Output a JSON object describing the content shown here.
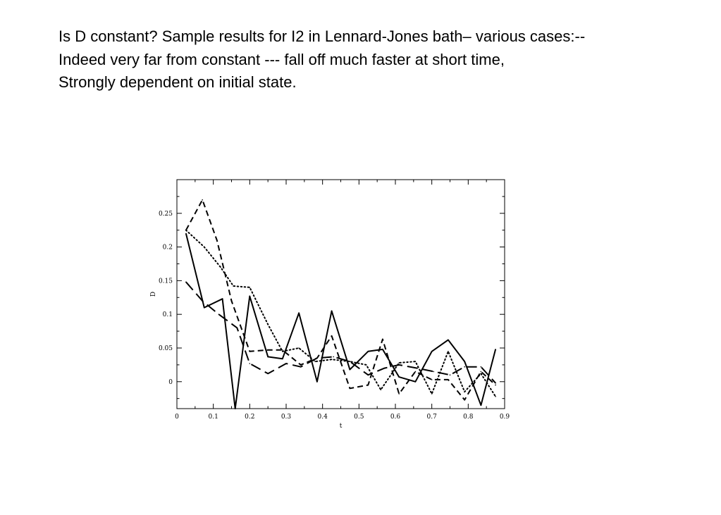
{
  "slide": {
    "lines": [
      "Is D constant? Sample results for I2 in Lennard-Jones bath– various cases:--",
      "Indeed very far from constant --- fall off much faster at short time,",
      "Strongly dependent on initial state."
    ]
  },
  "chart_data": {
    "type": "line",
    "xlabel": "t",
    "ylabel": "D",
    "xlim": [
      0,
      0.9
    ],
    "ylim": [
      -0.04,
      0.3
    ],
    "xticks": [
      "0",
      "0.1",
      "0.2",
      "0.3",
      "0.4",
      "0.5",
      "0.6",
      "0.7",
      "0.8",
      "0.9"
    ],
    "yticks": [
      "0",
      "0.05",
      "0.1",
      "0.15",
      "0.2",
      "0.25"
    ],
    "grid": false,
    "legend": "none",
    "series": [
      {
        "style": "solid",
        "x": [
          0.025,
          0.075,
          0.125,
          0.16,
          0.2,
          0.25,
          0.29,
          0.335,
          0.385,
          0.425,
          0.475,
          0.525,
          0.565,
          0.61,
          0.655,
          0.7,
          0.745,
          0.79,
          0.835,
          0.875
        ],
        "y": [
          0.22,
          0.11,
          0.123,
          -0.04,
          0.127,
          0.037,
          0.034,
          0.102,
          0.0,
          0.105,
          0.018,
          0.045,
          0.048,
          0.007,
          0.0,
          0.045,
          0.062,
          0.03,
          -0.035,
          0.048
        ]
      },
      {
        "style": "short-dash",
        "x": [
          0.025,
          0.07,
          0.11,
          0.15,
          0.2,
          0.25,
          0.29,
          0.34,
          0.385,
          0.425,
          0.475,
          0.525,
          0.565,
          0.61,
          0.655,
          0.7,
          0.745,
          0.79,
          0.835,
          0.875
        ],
        "y": [
          0.225,
          0.27,
          0.21,
          0.12,
          0.045,
          0.047,
          0.047,
          0.025,
          0.035,
          0.068,
          -0.01,
          -0.005,
          0.063,
          -0.018,
          0.015,
          0.003,
          0.003,
          -0.027,
          0.015,
          -0.005
        ]
      },
      {
        "style": "dotted",
        "x": [
          0.025,
          0.075,
          0.12,
          0.155,
          0.2,
          0.25,
          0.29,
          0.335,
          0.38,
          0.425,
          0.475,
          0.52,
          0.56,
          0.61,
          0.655,
          0.7,
          0.745,
          0.79,
          0.835,
          0.875
        ],
        "y": [
          0.225,
          0.2,
          0.17,
          0.142,
          0.14,
          0.085,
          0.045,
          0.05,
          0.03,
          0.033,
          0.03,
          0.025,
          -0.012,
          0.028,
          0.03,
          -0.018,
          0.045,
          -0.015,
          0.012,
          -0.022
        ]
      },
      {
        "style": "long-dash",
        "x": [
          0.025,
          0.07,
          0.115,
          0.165,
          0.2,
          0.25,
          0.3,
          0.34,
          0.385,
          0.43,
          0.475,
          0.525,
          0.57,
          0.61,
          0.66,
          0.705,
          0.75,
          0.79,
          0.835,
          0.875
        ],
        "y": [
          0.148,
          0.12,
          0.1,
          0.08,
          0.027,
          0.012,
          0.027,
          0.022,
          0.035,
          0.037,
          0.03,
          0.01,
          0.02,
          0.025,
          0.02,
          0.015,
          0.01,
          0.022,
          0.022,
          -0.002
        ]
      }
    ]
  }
}
